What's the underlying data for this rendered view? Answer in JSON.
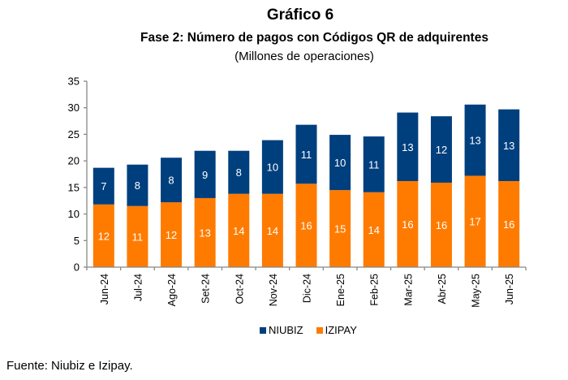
{
  "chart_data": {
    "type": "bar",
    "stacked": true,
    "title": "Gráfico 6",
    "subtitle": "Fase 2: Número de pagos con Códigos QR de adquirentes",
    "unit": "(Millones de operaciones)",
    "xlabel": "",
    "ylabel": "",
    "ylim": [
      0,
      35
    ],
    "yticks": [
      "0",
      "5",
      "10",
      "15",
      "20",
      "25",
      "30",
      "35"
    ],
    "categories": [
      "Jun-24",
      "Jul-24",
      "Ago-24",
      "Set-24",
      "Oct-24",
      "Nov-24",
      "Dic-24",
      "Ene-25",
      "Feb-25",
      "Mar-25",
      "Abr-25",
      "May-25",
      "Jun-25"
    ],
    "series": [
      {
        "name": "IZIPAY",
        "color": "#ff7b00",
        "values": [
          11.8,
          11.5,
          12.2,
          13.0,
          13.8,
          13.8,
          15.7,
          14.5,
          14.1,
          16.2,
          15.9,
          17.2,
          16.2
        ],
        "labels": [
          "12",
          "11",
          "12",
          "13",
          "14",
          "14",
          "16",
          "15",
          "14",
          "16",
          "16",
          "17",
          "16"
        ]
      },
      {
        "name": "NIUBIZ",
        "color": "#003f7d",
        "values": [
          6.9,
          7.8,
          8.4,
          8.9,
          8.1,
          10.1,
          11.1,
          10.4,
          10.5,
          12.9,
          12.5,
          13.4,
          13.5
        ],
        "labels": [
          "7",
          "8",
          "8",
          "9",
          "8",
          "10",
          "11",
          "10",
          "11",
          "13",
          "12",
          "13",
          "13"
        ]
      }
    ],
    "legend": [
      "NIUBIZ",
      "IZIPAY"
    ],
    "legend_position": "bottom",
    "grid": false
  },
  "source": "Fuente: Niubiz e Izipay."
}
